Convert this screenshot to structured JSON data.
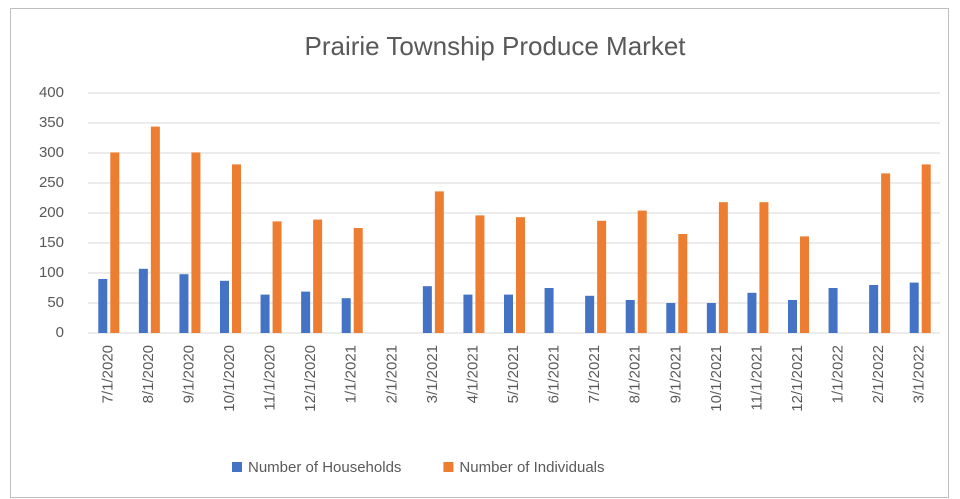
{
  "chart_data": {
    "type": "bar",
    "title": "Prairie Township Produce Market",
    "categories": [
      "7/1/2020",
      "8/1/2020",
      "9/1/2020",
      "10/1/2020",
      "11/1/2020",
      "12/1/2020",
      "1/1/2021",
      "2/1/2021",
      "3/1/2021",
      "4/1/2021",
      "5/1/2021",
      "6/1/2021",
      "7/1/2021",
      "8/1/2021",
      "9/1/2021",
      "10/1/2021",
      "11/1/2021",
      "12/1/2021",
      "1/1/2022",
      "2/1/2022",
      "3/1/2022"
    ],
    "series": [
      {
        "name": "Number of Households",
        "color": "#4472c4",
        "values": [
          90,
          107,
          98,
          87,
          64,
          69,
          58,
          null,
          78,
          64,
          64,
          75,
          62,
          55,
          50,
          50,
          67,
          55,
          75,
          80,
          84
        ]
      },
      {
        "name": "Number of Individuals",
        "color": "#ed7d31",
        "values": [
          301,
          344,
          301,
          281,
          186,
          189,
          175,
          null,
          236,
          196,
          193,
          null,
          187,
          204,
          165,
          218,
          218,
          161,
          null,
          266,
          281
        ]
      }
    ],
    "ylim": [
      0,
      400
    ],
    "yticks": [
      0,
      50,
      100,
      150,
      200,
      250,
      300,
      350,
      400
    ],
    "grid": true,
    "legend": "bottom"
  }
}
